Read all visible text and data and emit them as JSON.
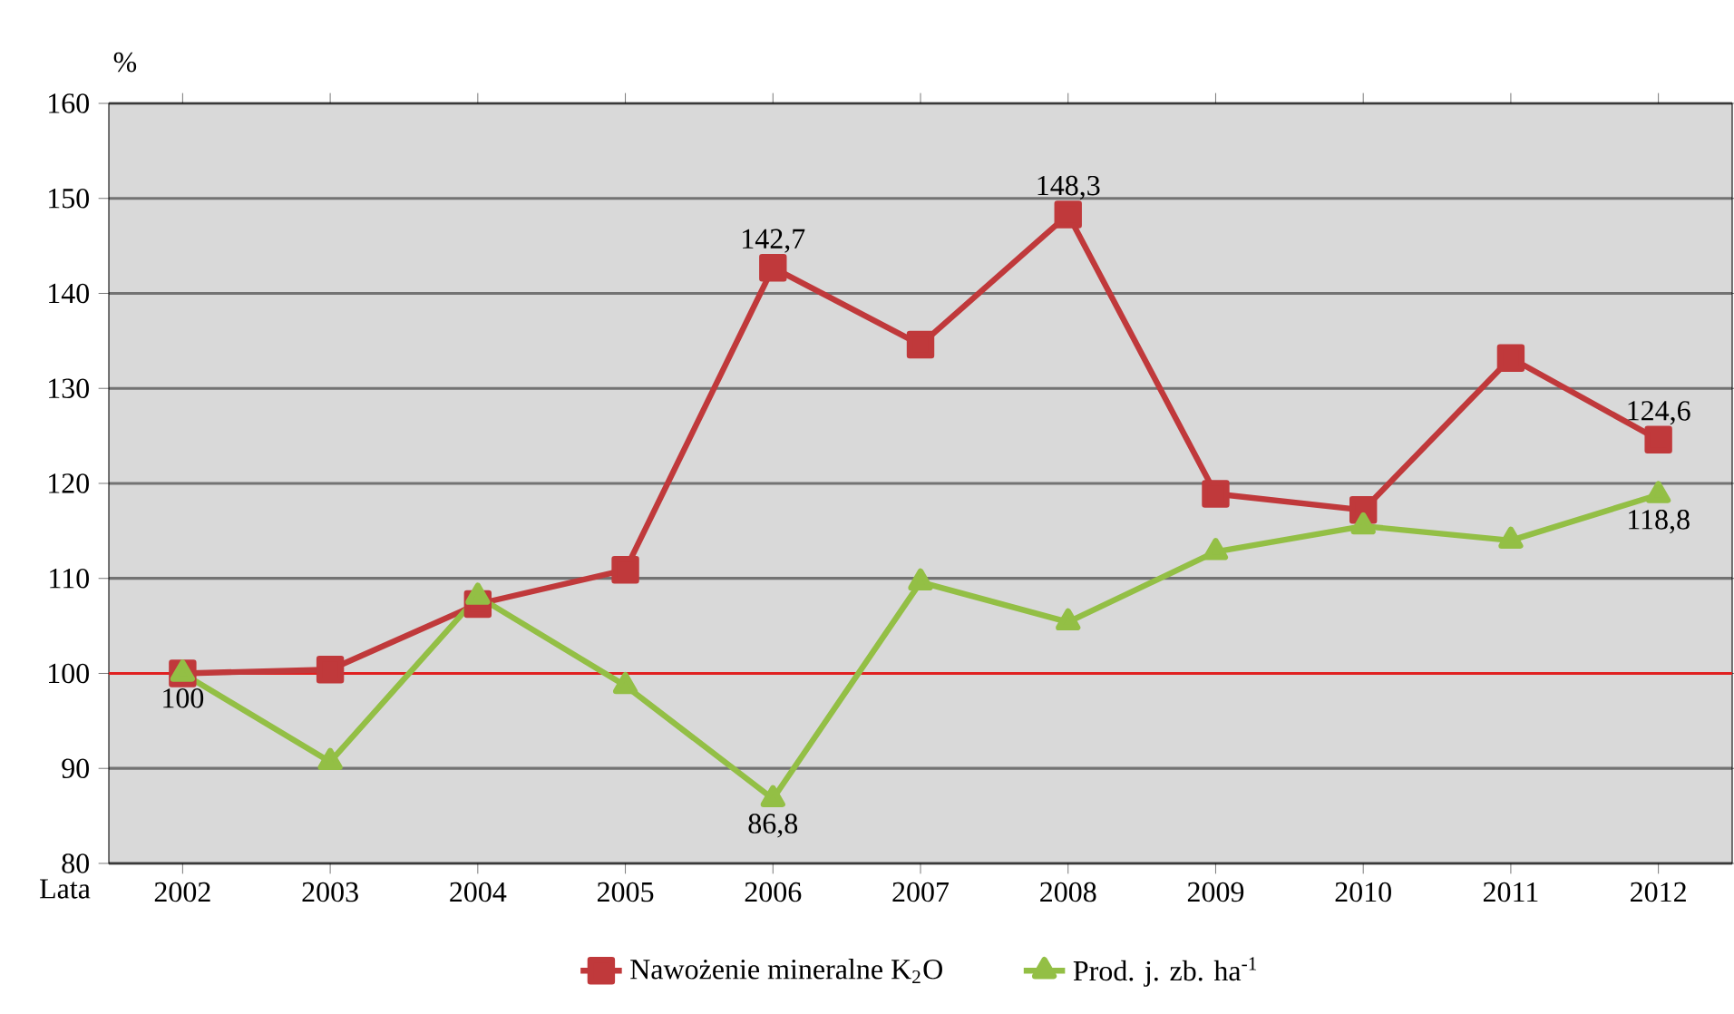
{
  "chart_data": {
    "type": "line",
    "xlabel": "Lata",
    "ylabel": "%",
    "categories": [
      "2002",
      "2003",
      "2004",
      "2005",
      "2006",
      "2007",
      "2008",
      "2009",
      "2010",
      "2011",
      "2012"
    ],
    "series": [
      {
        "name": "Nawożenie mineralne K$_{2}$O",
        "color": "#c0393b",
        "marker": "square",
        "values": [
          100,
          100.4,
          107.3,
          110.9,
          142.7,
          134.6,
          148.3,
          118.9,
          117.2,
          133.2,
          124.6
        ],
        "value_labels": [
          null,
          null,
          null,
          null,
          "142,7",
          null,
          "148,3",
          null,
          null,
          null,
          "124,6"
        ]
      },
      {
        "name": "Prod. j. zb. ha$^{-1}$",
        "color": "#93bf45",
        "marker": "triangle",
        "values": [
          100,
          90.7,
          108.1,
          98.7,
          86.8,
          109.6,
          105.4,
          112.8,
          115.5,
          114,
          118.8
        ],
        "value_labels": [
          "100",
          null,
          null,
          null,
          "86,8",
          null,
          null,
          null,
          null,
          null,
          "118,8"
        ]
      }
    ],
    "ylim": [
      80,
      160
    ],
    "yticks": [
      80,
      90,
      100,
      110,
      120,
      130,
      140,
      150,
      160
    ],
    "grid": "y",
    "legend": "bottom",
    "ref_lines": [
      {
        "axis": "y",
        "value": 100,
        "color": "#e02020"
      }
    ]
  }
}
